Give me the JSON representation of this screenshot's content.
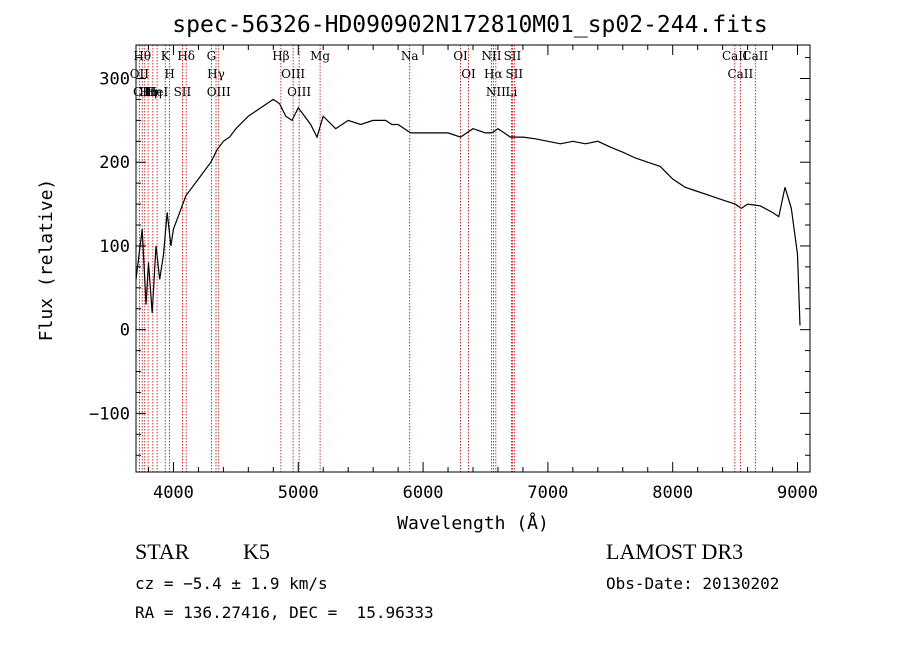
{
  "chart_data": {
    "type": "line",
    "title": "spec-56326-HD090902N172810M01_sp02-244.fits",
    "xlabel": "Wavelength (Å)",
    "ylabel": "Flux (relative)",
    "xlim": [
      3700,
      9100
    ],
    "ylim": [
      -170,
      340
    ],
    "xticks": [
      4000,
      5000,
      6000,
      7000,
      8000,
      9000
    ],
    "yticks": [
      -100,
      0,
      100,
      200,
      300
    ],
    "xtick_labels": [
      "4000",
      "5000",
      "6000",
      "7000",
      "8000",
      "9000"
    ],
    "ytick_labels": [
      "−100",
      "0",
      "100",
      "200",
      "300"
    ],
    "series": [
      {
        "name": "flux",
        "x": [
          3700,
          3750,
          3780,
          3800,
          3830,
          3860,
          3890,
          3920,
          3950,
          3980,
          4000,
          4050,
          4100,
          4150,
          4200,
          4250,
          4300,
          4350,
          4400,
          4450,
          4500,
          4600,
          4700,
          4800,
          4850,
          4900,
          4950,
          5000,
          5100,
          5150,
          5200,
          5300,
          5400,
          5500,
          5600,
          5700,
          5750,
          5800,
          5900,
          6000,
          6100,
          6200,
          6300,
          6400,
          6500,
          6550,
          6600,
          6700,
          6800,
          6900,
          7000,
          7100,
          7200,
          7300,
          7400,
          7500,
          7600,
          7700,
          7800,
          7900,
          8000,
          8100,
          8200,
          8300,
          8400,
          8500,
          8550,
          8600,
          8700,
          8800,
          8850,
          8900,
          8950,
          9000,
          9020
        ],
        "y": [
          60,
          120,
          30,
          80,
          20,
          100,
          60,
          90,
          140,
          100,
          120,
          140,
          160,
          170,
          180,
          190,
          200,
          215,
          225,
          230,
          240,
          255,
          265,
          275,
          270,
          255,
          250,
          265,
          245,
          230,
          255,
          240,
          250,
          245,
          250,
          250,
          245,
          245,
          235,
          235,
          235,
          235,
          230,
          240,
          235,
          235,
          240,
          230,
          230,
          228,
          225,
          222,
          225,
          222,
          225,
          218,
          212,
          205,
          200,
          195,
          180,
          170,
          165,
          160,
          155,
          150,
          145,
          150,
          148,
          140,
          135,
          170,
          145,
          90,
          5
        ]
      }
    ],
    "line_markers": [
      {
        "wavelength": 3750,
        "label": "Hθ"
      },
      {
        "wavelength": 3727,
        "label": "OII"
      },
      {
        "wavelength": 3770,
        "label": "CIII"
      },
      {
        "wavelength": 3797,
        "label": "Hη"
      },
      {
        "wavelength": 3835,
        "label": "Hη"
      },
      {
        "wavelength": 3869,
        "label": "HeI"
      },
      {
        "wavelength": 3934,
        "label": "K"
      },
      {
        "wavelength": 3969,
        "label": "H"
      },
      {
        "wavelength": 4072,
        "label": "SII"
      },
      {
        "wavelength": 4102,
        "label": "Hδ"
      },
      {
        "wavelength": 4304,
        "label": "G"
      },
      {
        "wavelength": 4341,
        "label": "Hγ"
      },
      {
        "wavelength": 4363,
        "label": "OIII"
      },
      {
        "wavelength": 4861,
        "label": "Hβ"
      },
      {
        "wavelength": 4959,
        "label": "OIII"
      },
      {
        "wavelength": 5007,
        "label": "OIII"
      },
      {
        "wavelength": 5175,
        "label": "Mg"
      },
      {
        "wavelength": 5893,
        "label": "Na"
      },
      {
        "wavelength": 6300,
        "label": "OI"
      },
      {
        "wavelength": 6364,
        "label": "OI"
      },
      {
        "wavelength": 6548,
        "label": "NII"
      },
      {
        "wavelength": 6563,
        "label": "Hα"
      },
      {
        "wavelength": 6583,
        "label": "NII"
      },
      {
        "wavelength": 6708,
        "label": "Li"
      },
      {
        "wavelength": 6716,
        "label": "SII"
      },
      {
        "wavelength": 6731,
        "label": "SII"
      },
      {
        "wavelength": 8498,
        "label": "CaII"
      },
      {
        "wavelength": 8542,
        "label": "CaII"
      },
      {
        "wavelength": 8662,
        "label": "CaII"
      }
    ]
  },
  "info": {
    "object_class": "STAR",
    "subclass": "K5",
    "redshift_line": "cz = −5.4 ± 1.9 km/s",
    "coords_line": "RA = 136.27416, DEC =  15.96333",
    "survey": "LAMOST DR3",
    "obs_date_line": "Obs-Date: 20130202"
  }
}
